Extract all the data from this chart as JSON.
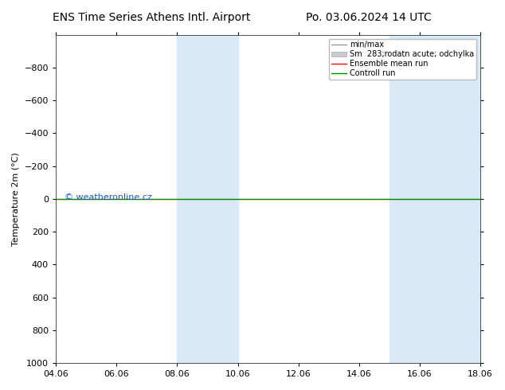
{
  "title_left": "ENS Time Series Athens Intl. Airport",
  "title_right": "Po. 03.06.2024 14 UTC",
  "ylabel": "Temperature 2m (°C)",
  "ylim_bottom": 1000,
  "ylim_top": -1000,
  "yticks": [
    -800,
    -600,
    -400,
    -200,
    0,
    200,
    400,
    600,
    800,
    1000
  ],
  "xtick_labels": [
    "04.06",
    "06.06",
    "08.06",
    "10.06",
    "12.06",
    "14.06",
    "16.06",
    "18.06"
  ],
  "xtick_positions": [
    0,
    2,
    4,
    6,
    8,
    10,
    12,
    14
  ],
  "blue_bands": [
    [
      4.0,
      5.0
    ],
    [
      5.0,
      6.0
    ],
    [
      11.0,
      12.0
    ],
    [
      12.0,
      14.0
    ]
  ],
  "ensemble_mean_y": 0,
  "control_run_y": 0,
  "watermark": "© weatheronline.cz",
  "watermark_color": "#2255cc",
  "bg_color": "#ffffff",
  "plot_bg_color": "#ffffff",
  "band_color": "#d8eaf8",
  "legend_minmax_color": "#999999",
  "legend_spread_color": "#cccccc",
  "legend_ensemble_color": "#ff0000",
  "legend_control_color": "#008800",
  "title_fontsize": 10,
  "axis_fontsize": 8,
  "tick_fontsize": 8,
  "legend_fontsize": 7
}
